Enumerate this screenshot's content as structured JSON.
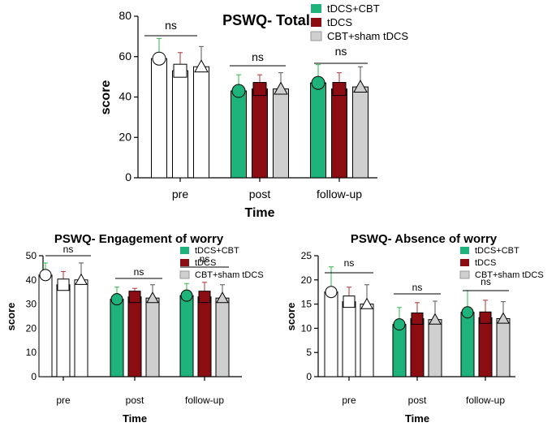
{
  "colors": {
    "tdcs_cbt": "#1db37a",
    "tdcs": "#8b0d12",
    "sham": "#cfcfcf",
    "pre_bar": "#ffffff",
    "err_tdcs_cbt": "#2fb84a",
    "err_tdcs": "#b03030",
    "err_sham": "#555555",
    "axis": "#000000"
  },
  "chart_data": [
    {
      "type": "bar",
      "title": "PSWQ- Total",
      "xlabel": "Time",
      "ylabel": "score",
      "ylim": [
        0,
        80
      ],
      "yticks": [
        0,
        20,
        40,
        60,
        80
      ],
      "categories": [
        "pre",
        "post",
        "follow-up"
      ],
      "series": [
        {
          "name": "tDCS+CBT",
          "values": [
            59,
            43,
            47
          ],
          "errors": [
            10,
            8,
            9
          ],
          "marker": "circle"
        },
        {
          "name": "tDCS",
          "values": [
            53,
            44,
            44
          ],
          "errors": [
            9,
            7,
            8
          ],
          "marker": "square"
        },
        {
          "name": "CBT+sham tDCS",
          "values": [
            55,
            44,
            45
          ],
          "errors": [
            10,
            8,
            10
          ],
          "marker": "triangle"
        }
      ],
      "significance": [
        {
          "label": "ns",
          "from_category": 0
        },
        {
          "label": "ns",
          "from_category": 1
        },
        {
          "label": "ns",
          "from_category": 2
        }
      ],
      "legend_location": "top-right"
    },
    {
      "type": "bar",
      "title": "PSWQ- Engagement of worry",
      "xlabel": "Time",
      "ylabel": "score",
      "ylim": [
        0,
        50
      ],
      "yticks": [
        0,
        10,
        20,
        30,
        40,
        50
      ],
      "categories": [
        "pre",
        "post",
        "follow-up"
      ],
      "series": [
        {
          "name": "tDCS+CBT",
          "values": [
            42,
            32,
            33.5
          ],
          "errors": [
            5,
            5,
            5
          ],
          "marker": "circle"
        },
        {
          "name": "tDCS",
          "values": [
            38,
            33,
            33
          ],
          "errors": [
            5.5,
            3.5,
            6
          ],
          "marker": "square"
        },
        {
          "name": "CBT+sham tDCS",
          "values": [
            40,
            32.5,
            32.5
          ],
          "errors": [
            7,
            5.5,
            5.5
          ],
          "marker": "triangle"
        }
      ],
      "significance": [
        {
          "label": "ns",
          "from_category": 0
        },
        {
          "label": "ns",
          "from_category": 1
        },
        {
          "label": "ns",
          "from_category": 2
        }
      ],
      "legend_location": "top-right"
    },
    {
      "type": "bar",
      "title": "PSWQ- Absence of worry",
      "xlabel": "Time",
      "ylabel": "score",
      "ylim": [
        0,
        25
      ],
      "yticks": [
        0,
        5,
        10,
        15,
        20,
        25
      ],
      "categories": [
        "pre",
        "post",
        "follow-up"
      ],
      "series": [
        {
          "name": "tDCS+CBT",
          "values": [
            17.5,
            10.8,
            13.3
          ],
          "errors": [
            5.2,
            3.5,
            4.5
          ],
          "marker": "circle"
        },
        {
          "name": "tDCS",
          "values": [
            15.5,
            12,
            12.2
          ],
          "errors": [
            3,
            3.3,
            3.6
          ],
          "marker": "square"
        },
        {
          "name": "CBT+sham tDCS",
          "values": [
            15,
            11.8,
            12
          ],
          "errors": [
            4,
            3.8,
            3.5
          ],
          "marker": "triangle"
        }
      ],
      "significance": [
        {
          "label": "ns",
          "from_category": 0
        },
        {
          "label": "ns",
          "from_category": 1
        },
        {
          "label": "ns",
          "from_category": 2
        }
      ],
      "legend_location": "top-right"
    }
  ]
}
